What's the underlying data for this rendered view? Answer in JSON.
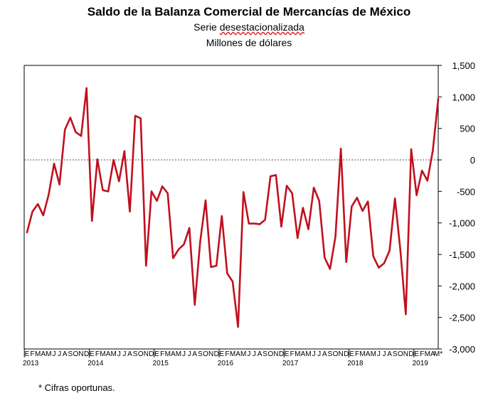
{
  "chart_data": {
    "type": "line",
    "title": "Saldo de la Balanza Comercial de Mercancías de México",
    "subtitle_prefix": "Serie ",
    "subtitle_word": "desestacionalizada",
    "unit_label": "Millones de dólares",
    "ylim": [
      -3000,
      1500
    ],
    "yticks": [
      1500,
      1000,
      500,
      0,
      -500,
      -1000,
      -1500,
      -2000,
      -2500,
      -3000
    ],
    "ytick_labels": [
      "1,500",
      "1,000",
      "500",
      "0",
      "-500",
      "-1,000",
      "-1,500",
      "-2,000",
      "-2,500",
      "-3,000"
    ],
    "month_letters": [
      "E",
      "F",
      "M",
      "A",
      "M",
      "J",
      "J",
      "A",
      "S",
      "O",
      "N",
      "D",
      "E",
      "F",
      "M",
      "A",
      "M",
      "J",
      "J",
      "A",
      "S",
      "O",
      "N",
      "D",
      "E",
      "F",
      "M",
      "A",
      "M",
      "J",
      "J",
      "A",
      "S",
      "O",
      "N",
      "D",
      "E",
      "F",
      "M",
      "A",
      "M",
      "J",
      "J",
      "A",
      "S",
      "O",
      "N",
      "D",
      "E",
      "F",
      "M",
      "A",
      "M",
      "J",
      "J",
      "A",
      "S",
      "O",
      "N",
      "D",
      "E",
      "F",
      "M",
      "A",
      "M",
      "J",
      "J",
      "A",
      "S",
      "O",
      "N",
      "D",
      "E",
      "F",
      "M",
      "A",
      "M*"
    ],
    "years": [
      "2013",
      "2014",
      "2015",
      "2016",
      "2017",
      "2018",
      "2019"
    ],
    "series": [
      {
        "name": "Saldo",
        "color": "#c0101e",
        "values": [
          -1150,
          -820,
          -700,
          -880,
          -550,
          -60,
          -390,
          480,
          670,
          440,
          380,
          1140,
          -970,
          10,
          -480,
          -500,
          0,
          -340,
          140,
          -820,
          700,
          660,
          -1680,
          -500,
          -650,
          -420,
          -530,
          -1560,
          -1420,
          -1340,
          -1080,
          -2300,
          -1300,
          -640,
          -1700,
          -1680,
          -890,
          -1800,
          -1930,
          -2650,
          -510,
          -1010,
          -1010,
          -1020,
          -950,
          -260,
          -240,
          -1060,
          -410,
          -530,
          -1240,
          -760,
          -1100,
          -440,
          -650,
          -1550,
          -1730,
          -1220,
          180,
          -1620,
          -740,
          -600,
          -810,
          -660,
          -1530,
          -1710,
          -1640,
          -1440,
          -610,
          -1430,
          -2450,
          170,
          -560,
          -170,
          -330,
          150,
          970
        ]
      }
    ],
    "footnote": "* Cifras oportunas."
  }
}
